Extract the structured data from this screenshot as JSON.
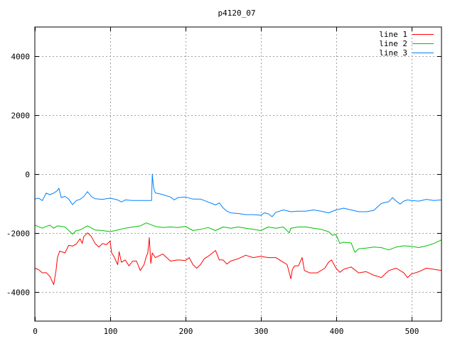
{
  "chart_data": {
    "type": "line",
    "title": "p4120_07",
    "xlabel": "",
    "ylabel": "",
    "xlim": [
      0,
      540
    ],
    "ylim": [
      -5000,
      5000
    ],
    "xticks": [
      0,
      100,
      200,
      300,
      400,
      500
    ],
    "yticks": [
      -4000,
      -2000,
      0,
      2000,
      4000
    ],
    "grid": true,
    "legend_position": "top-right",
    "series": [
      {
        "name": "line 1",
        "color": "#ff0000",
        "points": [
          [
            0,
            -3200
          ],
          [
            5,
            -3250
          ],
          [
            10,
            -3360
          ],
          [
            15,
            -3350
          ],
          [
            20,
            -3480
          ],
          [
            25,
            -3760
          ],
          [
            28,
            -3300
          ],
          [
            30,
            -2840
          ],
          [
            33,
            -2620
          ],
          [
            40,
            -2680
          ],
          [
            45,
            -2420
          ],
          [
            50,
            -2450
          ],
          [
            55,
            -2380
          ],
          [
            60,
            -2200
          ],
          [
            63,
            -2360
          ],
          [
            65,
            -2120
          ],
          [
            70,
            -2000
          ],
          [
            75,
            -2120
          ],
          [
            80,
            -2360
          ],
          [
            85,
            -2480
          ],
          [
            90,
            -2360
          ],
          [
            95,
            -2400
          ],
          [
            100,
            -2280
          ],
          [
            102,
            -2680
          ],
          [
            105,
            -2800
          ],
          [
            110,
            -3080
          ],
          [
            112,
            -2640
          ],
          [
            115,
            -3000
          ],
          [
            120,
            -2920
          ],
          [
            125,
            -3120
          ],
          [
            130,
            -2960
          ],
          [
            135,
            -2960
          ],
          [
            140,
            -3280
          ],
          [
            145,
            -3080
          ],
          [
            148,
            -2800
          ],
          [
            150,
            -2680
          ],
          [
            152,
            -2160
          ],
          [
            154,
            -3040
          ],
          [
            156,
            -2680
          ],
          [
            160,
            -2840
          ],
          [
            170,
            -2720
          ],
          [
            180,
            -2960
          ],
          [
            190,
            -2920
          ],
          [
            200,
            -2940
          ],
          [
            205,
            -2840
          ],
          [
            210,
            -3080
          ],
          [
            215,
            -3200
          ],
          [
            220,
            -3080
          ],
          [
            225,
            -2880
          ],
          [
            230,
            -2800
          ],
          [
            240,
            -2600
          ],
          [
            245,
            -2920
          ],
          [
            250,
            -2920
          ],
          [
            255,
            -3060
          ],
          [
            260,
            -2960
          ],
          [
            270,
            -2880
          ],
          [
            280,
            -2760
          ],
          [
            290,
            -2840
          ],
          [
            300,
            -2800
          ],
          [
            310,
            -2840
          ],
          [
            320,
            -2840
          ],
          [
            330,
            -3000
          ],
          [
            335,
            -3080
          ],
          [
            340,
            -3560
          ],
          [
            342,
            -3240
          ],
          [
            345,
            -3120
          ],
          [
            350,
            -3120
          ],
          [
            355,
            -2840
          ],
          [
            358,
            -3280
          ],
          [
            365,
            -3360
          ],
          [
            375,
            -3360
          ],
          [
            385,
            -3200
          ],
          [
            390,
            -3000
          ],
          [
            394,
            -2920
          ],
          [
            400,
            -3200
          ],
          [
            405,
            -3340
          ],
          [
            410,
            -3240
          ],
          [
            420,
            -3160
          ],
          [
            430,
            -3360
          ],
          [
            440,
            -3320
          ],
          [
            450,
            -3440
          ],
          [
            460,
            -3520
          ],
          [
            470,
            -3280
          ],
          [
            480,
            -3200
          ],
          [
            490,
            -3360
          ],
          [
            495,
            -3520
          ],
          [
            500,
            -3400
          ],
          [
            510,
            -3320
          ],
          [
            520,
            -3200
          ],
          [
            530,
            -3240
          ],
          [
            540,
            -3280
          ]
        ]
      },
      {
        "name": "line 2",
        "color": "#00c000",
        "points": [
          [
            0,
            -1740
          ],
          [
            10,
            -1840
          ],
          [
            15,
            -1780
          ],
          [
            20,
            -1740
          ],
          [
            25,
            -1840
          ],
          [
            30,
            -1760
          ],
          [
            40,
            -1800
          ],
          [
            50,
            -2040
          ],
          [
            55,
            -1920
          ],
          [
            60,
            -1900
          ],
          [
            70,
            -1760
          ],
          [
            80,
            -1900
          ],
          [
            90,
            -1920
          ],
          [
            100,
            -1960
          ],
          [
            110,
            -1900
          ],
          [
            120,
            -1840
          ],
          [
            140,
            -1760
          ],
          [
            148,
            -1660
          ],
          [
            160,
            -1780
          ],
          [
            170,
            -1820
          ],
          [
            180,
            -1800
          ],
          [
            190,
            -1820
          ],
          [
            200,
            -1780
          ],
          [
            210,
            -1920
          ],
          [
            220,
            -1880
          ],
          [
            230,
            -1820
          ],
          [
            240,
            -1920
          ],
          [
            250,
            -1800
          ],
          [
            260,
            -1840
          ],
          [
            270,
            -1800
          ],
          [
            280,
            -1840
          ],
          [
            290,
            -1880
          ],
          [
            300,
            -1920
          ],
          [
            310,
            -1800
          ],
          [
            320,
            -1840
          ],
          [
            330,
            -1800
          ],
          [
            338,
            -2000
          ],
          [
            340,
            -1840
          ],
          [
            350,
            -1800
          ],
          [
            360,
            -1800
          ],
          [
            370,
            -1840
          ],
          [
            380,
            -1880
          ],
          [
            390,
            -1960
          ],
          [
            395,
            -2080
          ],
          [
            400,
            -2060
          ],
          [
            405,
            -2360
          ],
          [
            410,
            -2320
          ],
          [
            420,
            -2340
          ],
          [
            425,
            -2660
          ],
          [
            430,
            -2540
          ],
          [
            440,
            -2520
          ],
          [
            450,
            -2480
          ],
          [
            460,
            -2500
          ],
          [
            470,
            -2580
          ],
          [
            480,
            -2480
          ],
          [
            490,
            -2440
          ],
          [
            500,
            -2460
          ],
          [
            510,
            -2500
          ],
          [
            520,
            -2440
          ],
          [
            530,
            -2360
          ],
          [
            540,
            -2240
          ]
        ]
      },
      {
        "name": "line 3",
        "color": "#0080ff",
        "points": [
          [
            0,
            -850
          ],
          [
            5,
            -820
          ],
          [
            10,
            -900
          ],
          [
            15,
            -650
          ],
          [
            20,
            -700
          ],
          [
            25,
            -650
          ],
          [
            30,
            -560
          ],
          [
            32,
            -480
          ],
          [
            35,
            -800
          ],
          [
            40,
            -760
          ],
          [
            45,
            -850
          ],
          [
            50,
            -1040
          ],
          [
            55,
            -900
          ],
          [
            60,
            -860
          ],
          [
            65,
            -760
          ],
          [
            70,
            -600
          ],
          [
            75,
            -760
          ],
          [
            80,
            -840
          ],
          [
            90,
            -860
          ],
          [
            100,
            -820
          ],
          [
            110,
            -880
          ],
          [
            115,
            -950
          ],
          [
            120,
            -880
          ],
          [
            130,
            -900
          ],
          [
            155,
            -900
          ],
          [
            156,
            0
          ],
          [
            157,
            -300
          ],
          [
            158,
            -500
          ],
          [
            160,
            -640
          ],
          [
            170,
            -700
          ],
          [
            180,
            -780
          ],
          [
            185,
            -880
          ],
          [
            190,
            -800
          ],
          [
            200,
            -780
          ],
          [
            210,
            -850
          ],
          [
            220,
            -850
          ],
          [
            230,
            -950
          ],
          [
            240,
            -1050
          ],
          [
            245,
            -980
          ],
          [
            250,
            -1150
          ],
          [
            255,
            -1260
          ],
          [
            260,
            -1320
          ],
          [
            270,
            -1340
          ],
          [
            280,
            -1380
          ],
          [
            290,
            -1380
          ],
          [
            300,
            -1400
          ],
          [
            305,
            -1320
          ],
          [
            310,
            -1350
          ],
          [
            315,
            -1450
          ],
          [
            320,
            -1300
          ],
          [
            330,
            -1220
          ],
          [
            340,
            -1280
          ],
          [
            350,
            -1260
          ],
          [
            360,
            -1260
          ],
          [
            370,
            -1220
          ],
          [
            380,
            -1260
          ],
          [
            390,
            -1320
          ],
          [
            400,
            -1220
          ],
          [
            410,
            -1160
          ],
          [
            420,
            -1220
          ],
          [
            430,
            -1280
          ],
          [
            440,
            -1280
          ],
          [
            450,
            -1240
          ],
          [
            460,
            -1000
          ],
          [
            470,
            -940
          ],
          [
            475,
            -800
          ],
          [
            480,
            -920
          ],
          [
            485,
            -1020
          ],
          [
            490,
            -920
          ],
          [
            495,
            -880
          ],
          [
            500,
            -900
          ],
          [
            510,
            -920
          ],
          [
            520,
            -860
          ],
          [
            530,
            -900
          ],
          [
            540,
            -880
          ]
        ]
      }
    ]
  }
}
